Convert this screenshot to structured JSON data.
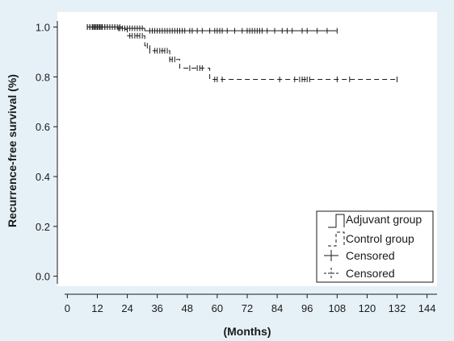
{
  "colors": {
    "background": "#e6f1f7",
    "plot_area": "#ffffff",
    "line": "#1a1a1a"
  },
  "chart_data": {
    "type": "line",
    "title": "",
    "xlabel": "(Months)",
    "ylabel": "Recurrence-free survival (%)",
    "xlim": [
      -4,
      148
    ],
    "ylim": [
      -0.04,
      1.06
    ],
    "x_ticks": [
      0,
      12,
      24,
      36,
      48,
      60,
      72,
      84,
      96,
      108,
      120,
      132,
      144
    ],
    "y_ticks": [
      0.0,
      0.2,
      0.4,
      0.6,
      0.8,
      1.0
    ],
    "y_tick_labels": [
      "0.0",
      "0.2",
      "0.4",
      "0.6",
      "0.8",
      "1.0"
    ],
    "legend_position": "bottom-right",
    "legend": [
      {
        "label": "Adjuvant group",
        "symbol": "step-solid"
      },
      {
        "label": "Control group",
        "symbol": "step-dashed"
      },
      {
        "label": "Censored",
        "symbol": "plus-solid"
      },
      {
        "label": "Censored",
        "symbol": "plus-dashed"
      }
    ],
    "series": [
      {
        "name": "Adjuvant group",
        "style": "solid",
        "steps": [
          [
            8,
            1.0
          ],
          [
            20,
            0.995
          ],
          [
            31,
            0.985
          ],
          [
            108,
            0.985
          ]
        ],
        "censored": [
          8,
          9,
          10,
          10.5,
          11,
          11.5,
          12,
          12.5,
          13,
          13.5,
          14,
          15,
          16,
          17,
          18,
          19,
          20.5,
          21,
          22,
          23,
          24,
          25,
          26,
          27,
          28,
          29,
          30,
          33,
          34,
          35,
          36,
          37,
          38,
          39,
          40,
          41,
          42,
          43,
          44,
          45,
          46,
          47,
          49,
          50,
          52,
          54,
          57,
          59,
          60,
          61,
          62,
          64,
          67,
          70,
          72,
          73,
          74,
          75,
          76,
          77,
          78,
          80,
          83,
          86,
          88,
          90,
          94,
          96,
          100,
          104,
          108
        ]
      },
      {
        "name": "Control group",
        "style": "dashed",
        "steps": [
          [
            8,
            1.0
          ],
          [
            22,
            0.99
          ],
          [
            24,
            0.965
          ],
          [
            31,
            0.925
          ],
          [
            33,
            0.905
          ],
          [
            41,
            0.87
          ],
          [
            45,
            0.835
          ],
          [
            57,
            0.79
          ],
          [
            132,
            0.79
          ]
        ],
        "censored": [
          8,
          9,
          10,
          11,
          12,
          13,
          14,
          15,
          16,
          17,
          18,
          19,
          20,
          21,
          25,
          26,
          27,
          28,
          29,
          30,
          32,
          33,
          35,
          36,
          37,
          38,
          39,
          40,
          41,
          42,
          43,
          49,
          52,
          53,
          54,
          59,
          60,
          62,
          85,
          91,
          93,
          94,
          95,
          96,
          97,
          108,
          113,
          132
        ]
      }
    ]
  }
}
